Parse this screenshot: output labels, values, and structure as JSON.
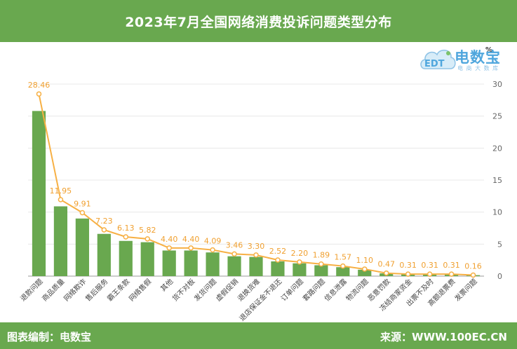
{
  "header": {
    "title": "2023年7月全国网络消费投诉问题类型分布"
  },
  "footer": {
    "left": "图表编制：电数宝",
    "right": "来源：WWW.100EC.CN"
  },
  "logo": {
    "text": "电数宝",
    "sub": "电 商 大 数 库",
    "icon": "cloud-logo-icon",
    "badge": "EDT"
  },
  "colors": {
    "bar": "#69a84f",
    "line": "#f7b044",
    "label": "#f0a030",
    "band": "#69a84f",
    "grid": "#e8e8e8",
    "axis": "#666666"
  },
  "chart_data": {
    "type": "bar",
    "title": "2023年7月全国网络消费投诉问题类型分布",
    "unit": "%",
    "ylim": [
      0,
      30
    ],
    "yticks": [
      0,
      5,
      10,
      15,
      20,
      25,
      30
    ],
    "y_axis_position": "right",
    "grid": true,
    "categories": [
      "退款问题",
      "商品质量",
      "网络欺诈",
      "售后服务",
      "霸王条款",
      "网络售假",
      "其他",
      "货不对板",
      "发货问题",
      "虚假促销",
      "退换货难",
      "退店保证金不退还",
      "订单问题",
      "套路问题",
      "信息泄露",
      "物流问题",
      "恶意罚款",
      "冻结商家资金",
      "出票不及时",
      "高额退票费",
      "发票问题"
    ],
    "series": [
      {
        "type": "bar",
        "values": [
          25.8,
          10.9,
          9.0,
          6.6,
          5.5,
          5.3,
          4.0,
          4.0,
          3.7,
          3.1,
          3.0,
          2.3,
          2.0,
          1.7,
          1.4,
          1.0,
          0.43,
          0.28,
          0.28,
          0.28,
          0.15
        ]
      },
      {
        "type": "line",
        "values": [
          28.46,
          11.95,
          9.91,
          7.23,
          6.13,
          5.82,
          4.4,
          4.4,
          4.09,
          3.46,
          3.3,
          2.52,
          2.2,
          1.89,
          1.57,
          1.1,
          0.47,
          0.31,
          0.31,
          0.31,
          0.16
        ]
      }
    ],
    "data_labels": [
      "28.46",
      "11.95",
      "9.91",
      "7.23",
      "6.13",
      "5.82",
      "4.40",
      "4.40",
      "4.09",
      "3.46",
      "3.30",
      "2.52",
      "2.20",
      "1.89",
      "1.57",
      "1.10",
      "0.47",
      "0.31",
      "0.31",
      "0.31",
      "0.16"
    ]
  }
}
